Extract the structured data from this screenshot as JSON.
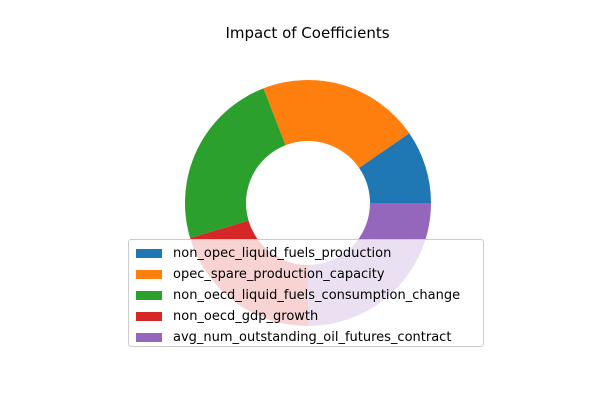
{
  "chart_data": {
    "type": "pie",
    "title": "Impact of Coefficients",
    "donut": true,
    "labels": [
      "non_opec_liquid_fuels_production",
      "opec_spare_production_capacity",
      "non_oecd_liquid_fuels_consumption_change",
      "non_oecd_gdp_growth",
      "avg_num_outstanding_oil_futures_contract"
    ],
    "values": [
      0.096,
      0.213,
      0.237,
      0.204,
      0.25
    ],
    "colors": [
      "#1f77b4",
      "#ff7f0e",
      "#2ca02c",
      "#d62728",
      "#9467bd"
    ],
    "legend_position": "lower center"
  }
}
